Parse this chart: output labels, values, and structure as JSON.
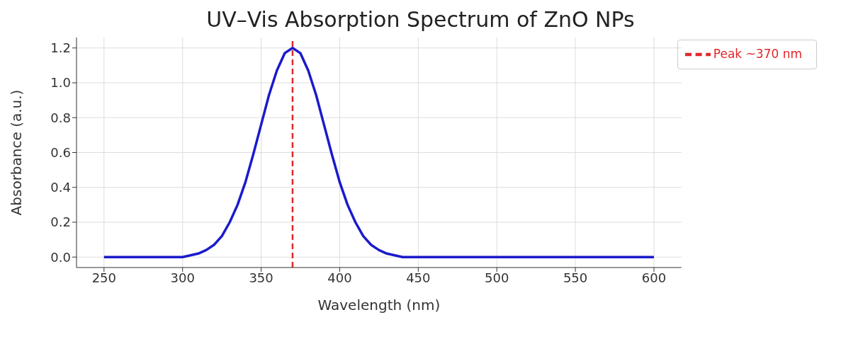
{
  "chart_data": {
    "type": "line",
    "title": "UV–Vis Absorption Spectrum of ZnO NPs",
    "xlabel": "Wavelength (nm)",
    "ylabel": "Absorbance (a.u.)",
    "x": [
      250,
      290,
      300,
      305,
      310,
      315,
      320,
      325,
      330,
      335,
      340,
      345,
      350,
      355,
      360,
      365,
      370,
      375,
      380,
      385,
      390,
      395,
      400,
      405,
      410,
      415,
      420,
      425,
      430,
      435,
      440,
      450,
      460,
      600
    ],
    "series": [
      {
        "color": "#1a1acc",
        "values": [
          0,
          0,
          0,
          0.01,
          0.02,
          0.04,
          0.07,
          0.12,
          0.2,
          0.3,
          0.43,
          0.59,
          0.76,
          0.93,
          1.07,
          1.17,
          1.2,
          1.17,
          1.07,
          0.93,
          0.76,
          0.59,
          0.43,
          0.3,
          0.2,
          0.12,
          0.07,
          0.04,
          0.02,
          0.01,
          0,
          0,
          0,
          0
        ]
      }
    ],
    "xlim": [
      232.5,
      617.5
    ],
    "xticks": [
      250,
      300,
      350,
      400,
      450,
      500,
      550,
      600
    ],
    "ylim": [
      -0.06,
      1.26
    ],
    "yticks": [
      {
        "value": 0,
        "label": "0.0"
      },
      0.2,
      0.4,
      0.6,
      0.8,
      {
        "value": 1,
        "label": "1.0"
      },
      1.2
    ],
    "ref_lines": [
      {
        "axis": "x",
        "value": 370,
        "label": "Peak ~370 nm",
        "color": "#e0282a",
        "line_style": "dashed"
      }
    ],
    "grid": true,
    "legend": "top right",
    "marker": "none",
    "line_style": "solid"
  }
}
